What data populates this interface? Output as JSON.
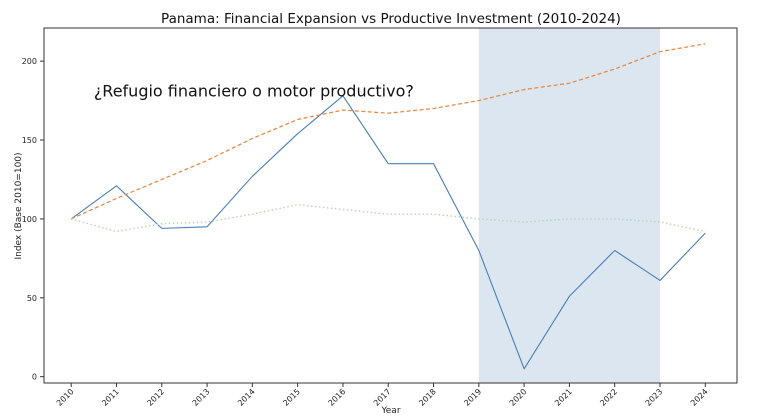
{
  "chart_data": {
    "type": "line",
    "title": "Panama: Financial Expansion vs Productive Investment (2010-2024)",
    "xlabel": "Year",
    "ylabel": "Index (Base 2010=100)",
    "x": [
      2010,
      2011,
      2012,
      2013,
      2014,
      2015,
      2016,
      2017,
      2018,
      2019,
      2020,
      2021,
      2022,
      2023,
      2024
    ],
    "xlim": [
      2009.4,
      2024.7
    ],
    "ylim": [
      -4,
      221
    ],
    "yticks": [
      0,
      50,
      100,
      150,
      200
    ],
    "grid": false,
    "legend": "none",
    "annotation": {
      "text": "¿Refugio financiero o motor productivo?",
      "x": 2010.5,
      "y": 180
    },
    "shaded_region": {
      "x_start": 2019,
      "x_end": 2023,
      "color": "#dce6f0"
    },
    "series": [
      {
        "style": "solid",
        "color": "#4a7fb5",
        "values": [
          100,
          121,
          94,
          95,
          127,
          154,
          178,
          135,
          135,
          80,
          5,
          51,
          80,
          61,
          91
        ]
      },
      {
        "style": "dashed",
        "color": "#e8843a",
        "values": [
          100,
          113,
          125,
          137,
          151,
          163,
          169,
          167,
          170,
          175,
          182,
          186,
          195,
          206,
          211
        ]
      },
      {
        "style": "dotted",
        "color": "#b8d4b0",
        "values": [
          100,
          92,
          97,
          98,
          103,
          109,
          106,
          103,
          103,
          100,
          98,
          100,
          100,
          98,
          92
        ]
      }
    ]
  }
}
